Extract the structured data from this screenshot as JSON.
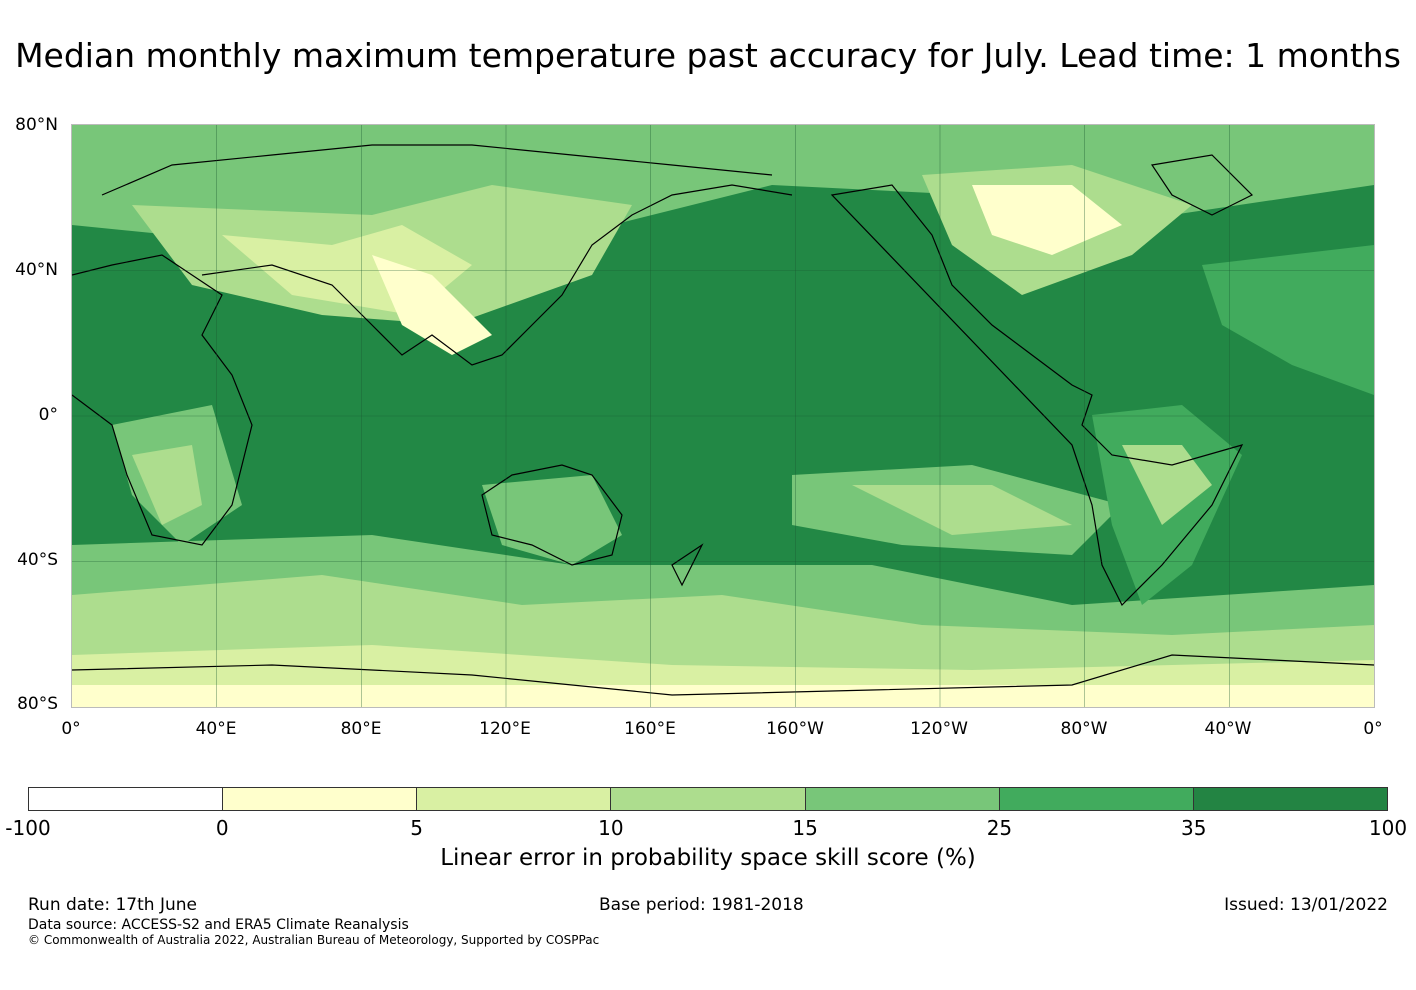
{
  "title": "Median monthly maximum temperature past accuracy for July. Lead time: 1 months",
  "map": {
    "projection": "equirectangular",
    "central_longitude": 180,
    "lat_range": [
      -80,
      80
    ],
    "lon_range": [
      0,
      360
    ],
    "background_color": "#228845",
    "coastline_color": "#000000",
    "gridlines": true,
    "lat_ticks": [
      "80°N",
      "40°N",
      "0°",
      "40°S",
      "80°S"
    ],
    "lon_ticks": [
      "0°",
      "40°E",
      "80°E",
      "120°E",
      "160°E",
      "160°W",
      "120°W",
      "80°W",
      "40°W",
      "0°"
    ]
  },
  "colorbar": {
    "label": "Linear error in probability space skill score (%)",
    "ticks": [
      "-100",
      "0",
      "5",
      "10",
      "15",
      "25",
      "35",
      "100"
    ],
    "colors": [
      "#ffffff",
      "#ffffcc",
      "#d9f0a3",
      "#addd8e",
      "#78c679",
      "#41ab5d",
      "#238443"
    ]
  },
  "footer": {
    "run_date": "Run date: 17th June",
    "base_period": "Base period: 1981-2018",
    "issued": "Issued: 13/01/2022",
    "data_source": "Data source: ACCESS-S2 and ERA5 Climate Reanalysis",
    "copyright": "© Commonwealth of Australia 2022, Australian Bureau of Meteorology, Supported by COSPPac"
  }
}
